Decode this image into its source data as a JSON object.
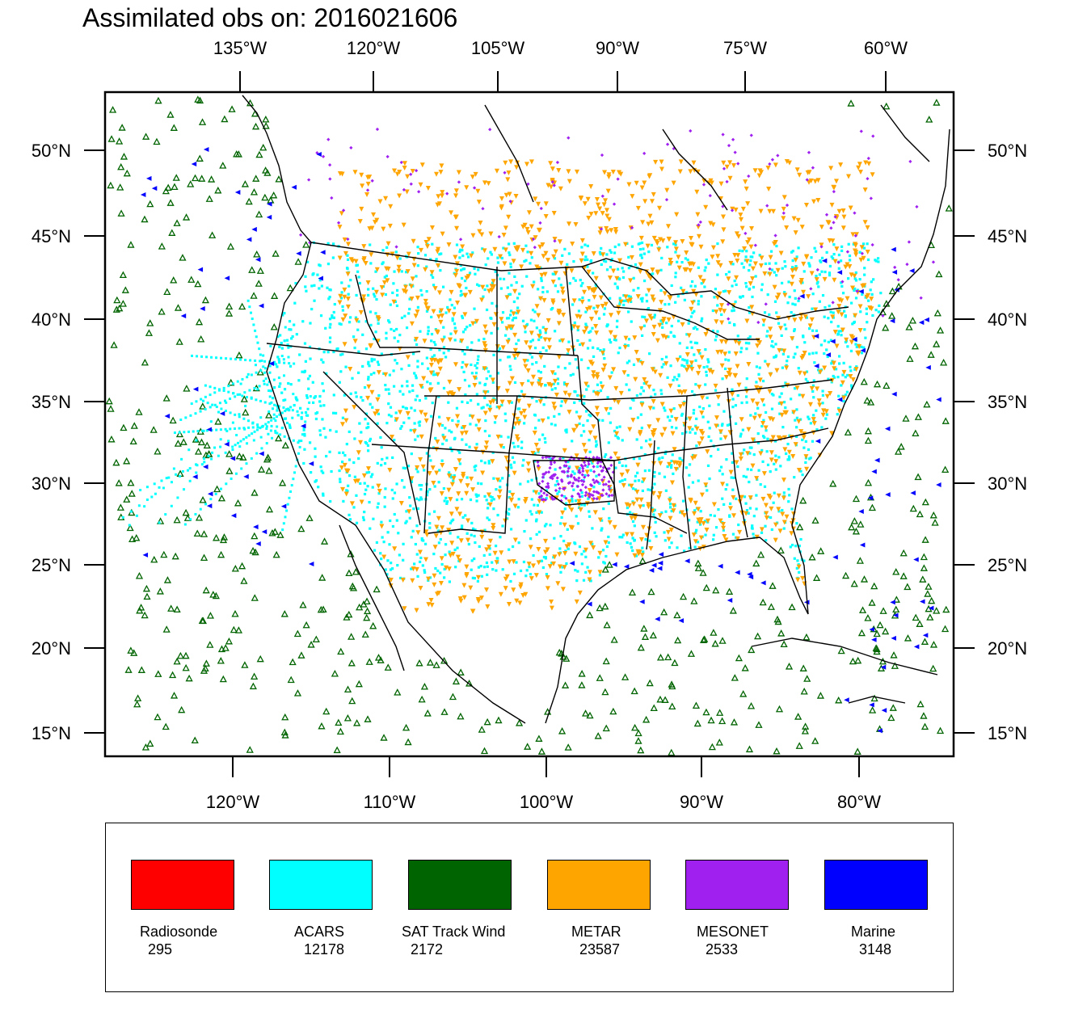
{
  "title": "Assimilated obs on: 2016021606",
  "top_lon_labels": [
    "135°W",
    "120°W",
    "105°W",
    "90°W",
    "75°W",
    "60°W"
  ],
  "bottom_lon_labels": [
    "120°W",
    "110°W",
    "100°W",
    "90°W",
    "80°W"
  ],
  "lat_labels": [
    "50°N",
    "45°N",
    "40°N",
    "35°N",
    "30°N",
    "25°N",
    "20°N",
    "15°N"
  ],
  "legend": [
    {
      "name": "Radiosonde",
      "count": "295",
      "color": "#ff0000"
    },
    {
      "name": "ACARS",
      "count": "12178",
      "color": "#00ffff"
    },
    {
      "name": "SAT Track Wind",
      "count": "2172",
      "color": "#006400"
    },
    {
      "name": "METAR",
      "count": "23587",
      "color": "#ffa500"
    },
    {
      "name": "MESONET",
      "count": "2533",
      "color": "#a020f0"
    },
    {
      "name": "Marine",
      "count": "3148",
      "color": "#0000ff"
    }
  ]
}
